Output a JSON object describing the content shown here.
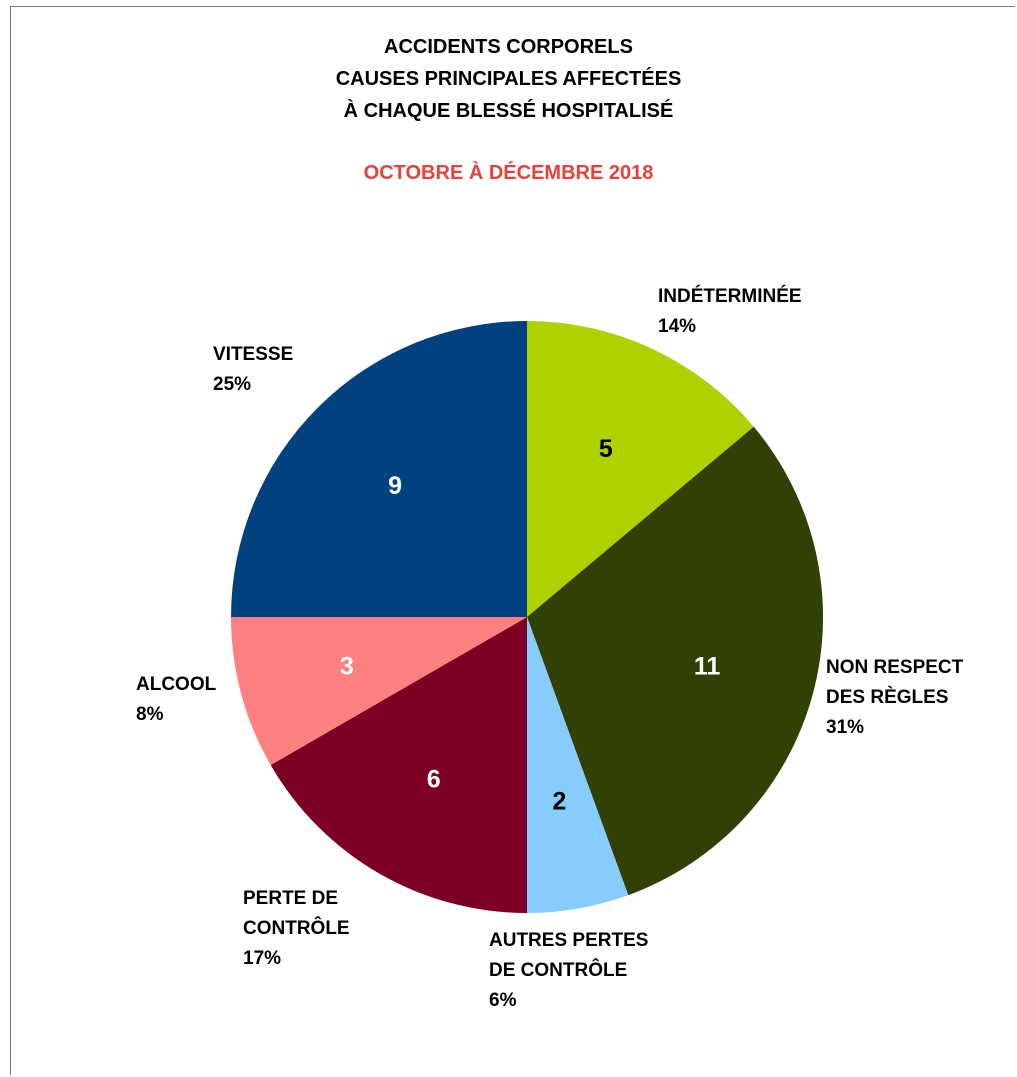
{
  "title_lines": [
    "ACCIDENTS CORPORELS",
    "CAUSES PRINCIPALES AFFECTÉES",
    "À CHAQUE BLESSÉ HOSPITALISÉ"
  ],
  "subtitle": "OCTOBRE À DÉCEMBRE 2018",
  "colors": {
    "subtitle": "#e8413a",
    "border": "#7a7a7a"
  },
  "chart_data": {
    "type": "pie",
    "start": "12 o'clock",
    "direction": "clockwise",
    "slices": [
      {
        "label_lines": [
          "INDÉTERMINÉE"
        ],
        "value": 5,
        "percent": "14%",
        "color": "#b0d100",
        "value_color": "#000000"
      },
      {
        "label_lines": [
          "NON RESPECT",
          "DES RÈGLES"
        ],
        "value": 11,
        "percent": "31%",
        "color": "#314004",
        "value_color": "#ffffff"
      },
      {
        "label_lines": [
          "AUTRES PERTES",
          "DE CONTRÔLE"
        ],
        "value": 2,
        "percent": "6%",
        "color": "#86ccff",
        "value_color": "#000000"
      },
      {
        "label_lines": [
          "PERTE DE",
          "CONTRÔLE"
        ],
        "value": 6,
        "percent": "17%",
        "color": "#7b0023",
        "value_color": "#ffffff"
      },
      {
        "label_lines": [
          "ALCOOL"
        ],
        "value": 3,
        "percent": "8%",
        "color": "#ff8080",
        "value_color": "#ffffff"
      },
      {
        "label_lines": [
          "VITESSE"
        ],
        "value": 9,
        "percent": "25%",
        "color": "#00427f",
        "value_color": "#ffffff"
      }
    ]
  }
}
